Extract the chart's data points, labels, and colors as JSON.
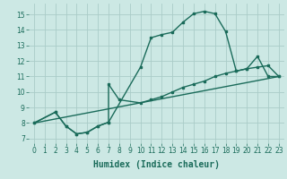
{
  "xlabel": "Humidex (Indice chaleur)",
  "background_color": "#cce8e4",
  "grid_color": "#aaccc8",
  "line_color": "#1a6b5a",
  "xlim": [
    -0.5,
    23.5
  ],
  "ylim": [
    6.7,
    15.7
  ],
  "xticks": [
    0,
    1,
    2,
    3,
    4,
    5,
    6,
    7,
    8,
    9,
    10,
    11,
    12,
    13,
    14,
    15,
    16,
    17,
    18,
    19,
    20,
    21,
    22,
    23
  ],
  "yticks": [
    7,
    8,
    9,
    10,
    11,
    12,
    13,
    14,
    15
  ],
  "line1_x": [
    0,
    2,
    3,
    4,
    5,
    6,
    7,
    10,
    11,
    12,
    13,
    14,
    15,
    16,
    17,
    18,
    19,
    20,
    21,
    22,
    23
  ],
  "line1_y": [
    8.0,
    8.7,
    7.8,
    7.3,
    7.4,
    7.8,
    8.05,
    11.6,
    13.5,
    13.7,
    13.85,
    14.5,
    15.05,
    15.2,
    15.05,
    13.9,
    11.35,
    11.5,
    12.3,
    11.0,
    11.0
  ],
  "line2_x": [
    0,
    2,
    3,
    4,
    5,
    6,
    7,
    7,
    8,
    10,
    11,
    12,
    13,
    14,
    15,
    16,
    17,
    18,
    19,
    20,
    21,
    22,
    23
  ],
  "line2_y": [
    8.0,
    8.7,
    7.8,
    7.3,
    7.4,
    7.8,
    8.05,
    10.5,
    9.5,
    9.3,
    9.5,
    9.7,
    10.0,
    10.3,
    10.5,
    10.7,
    11.0,
    11.2,
    11.35,
    11.5,
    11.6,
    11.7,
    11.0
  ],
  "line3_x": [
    0,
    23
  ],
  "line3_y": [
    8.0,
    11.0
  ],
  "xlabel_fontsize": 7,
  "tick_fontsize": 5.5
}
